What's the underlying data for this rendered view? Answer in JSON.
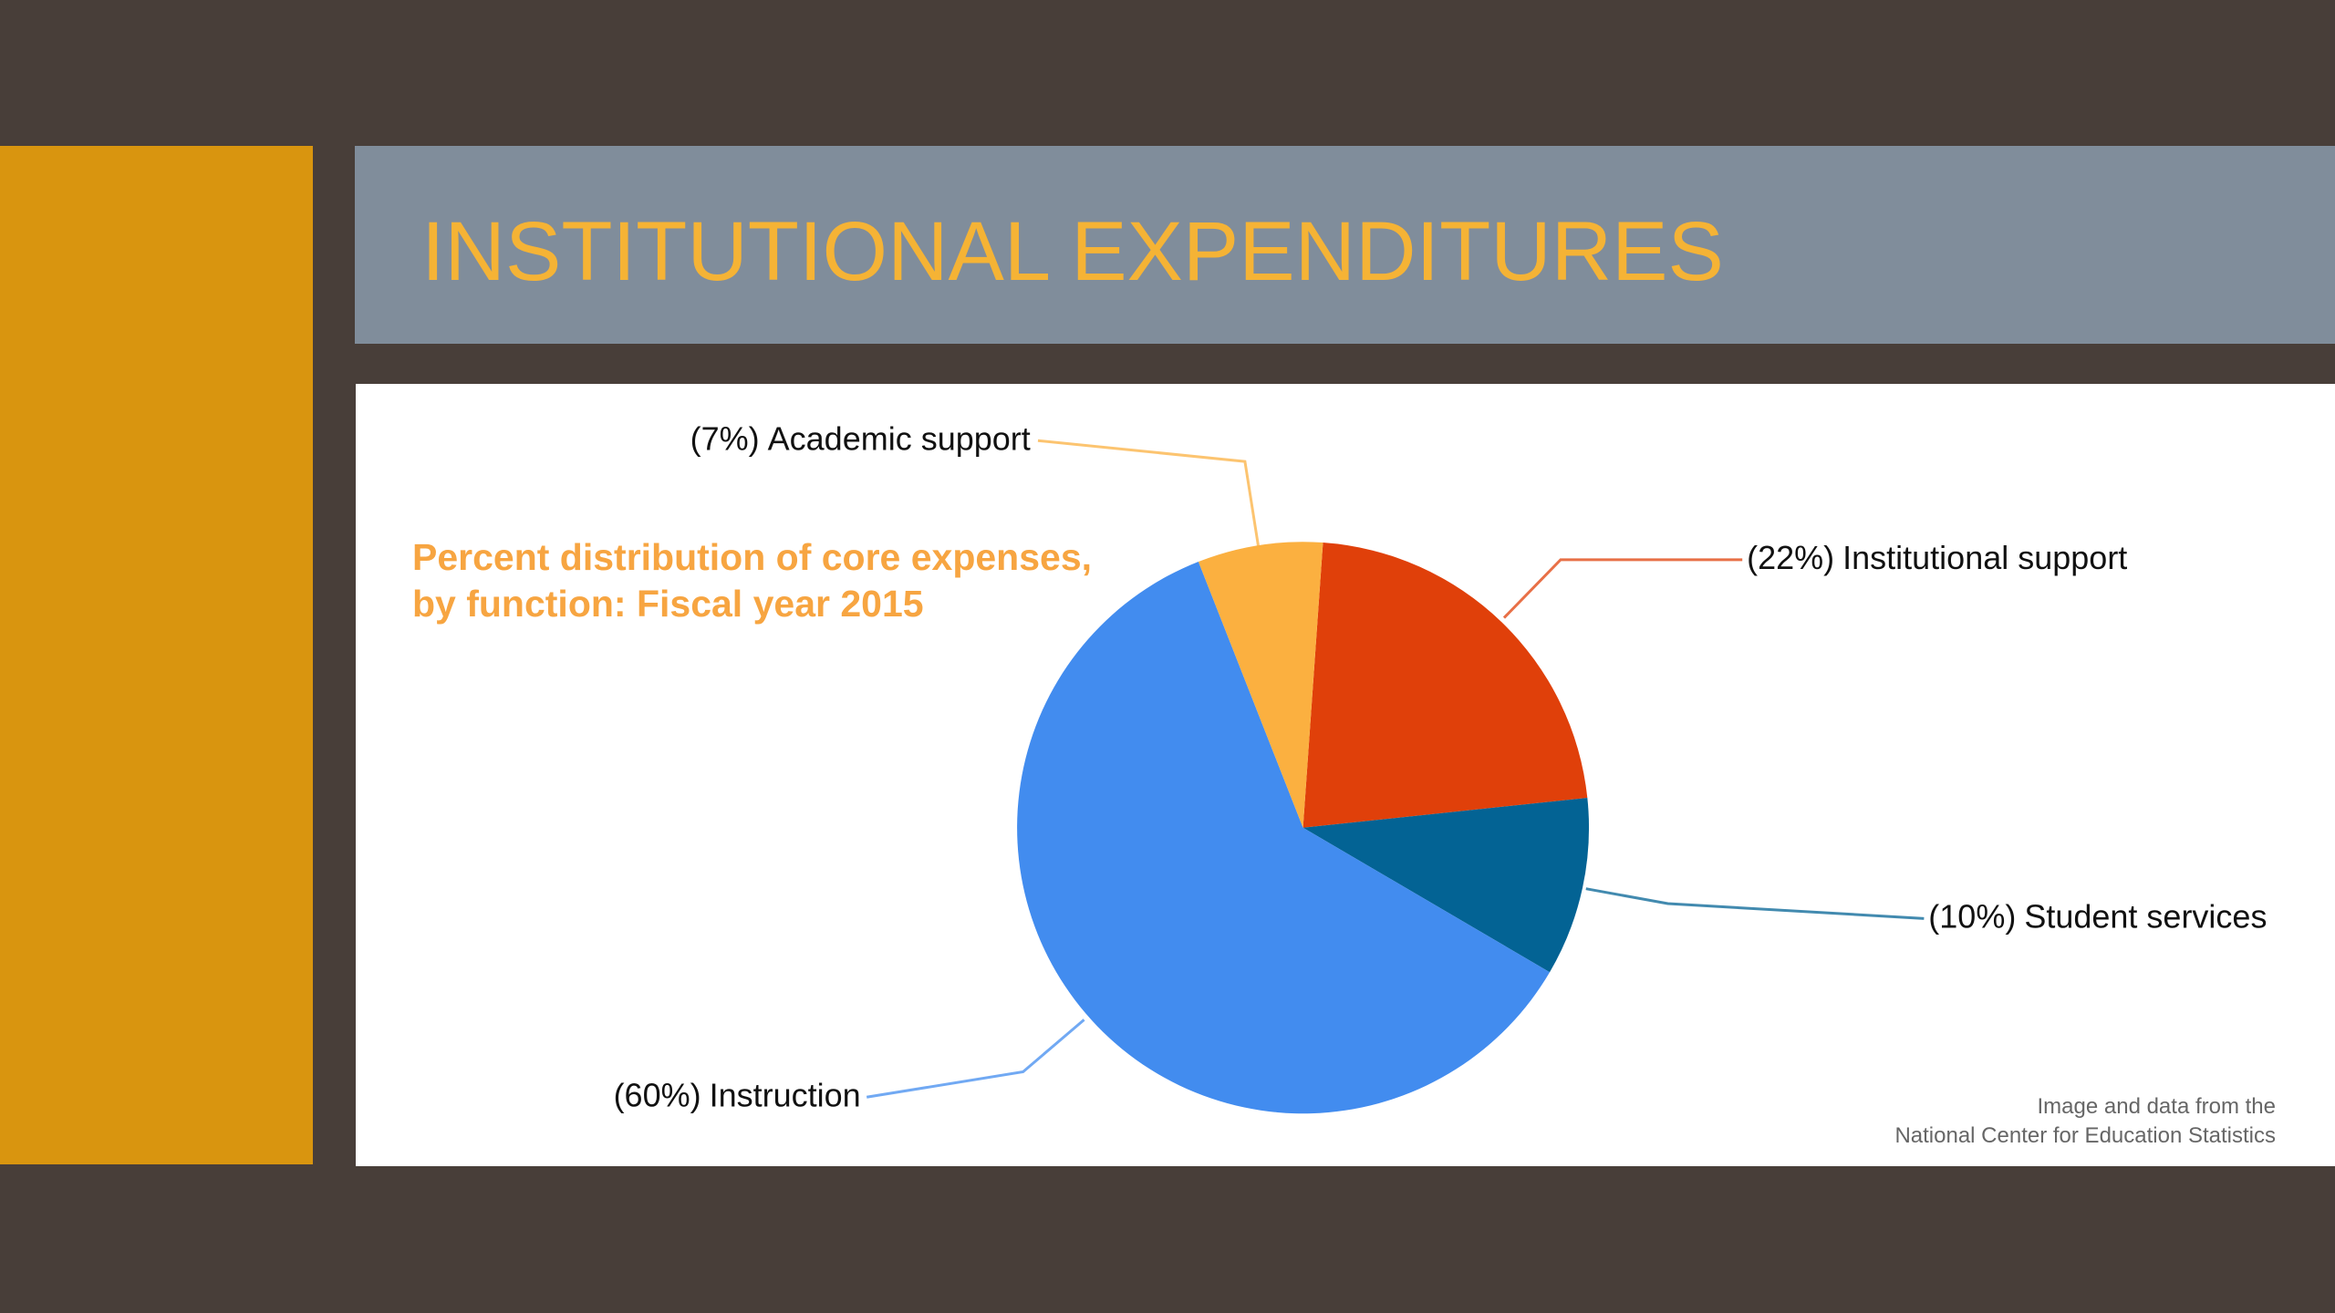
{
  "slide": {
    "title": "INSTITUTIONAL EXPENDITURES"
  },
  "chart_data": {
    "type": "pie",
    "title": [
      "Percent distribution of core expenses,",
      "by function: Fiscal year 2015"
    ],
    "categories": [
      "Institutional support",
      "Student services",
      "Instruction",
      "Academic support"
    ],
    "values": [
      22,
      10,
      60,
      7
    ],
    "value_labels": [
      "(22%)",
      "(10%)",
      "(60%)",
      "(7%)"
    ],
    "colors": [
      "#e0400a",
      "#036394",
      "#428cef",
      "#fbb040"
    ],
    "note": [
      "Image and data from the",
      "National Center for Education Statistics"
    ]
  }
}
